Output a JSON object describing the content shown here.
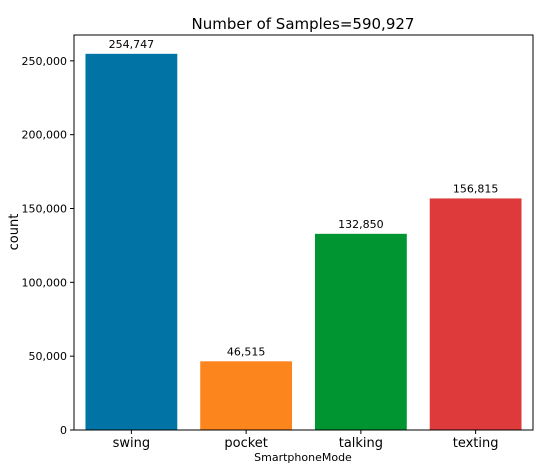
{
  "chart_data": {
    "type": "bar",
    "title": "Number of Samples=590,927",
    "xlabel": "SmartphoneMode",
    "ylabel": "count",
    "categories": [
      "swing",
      "pocket",
      "talking",
      "texting"
    ],
    "values": [
      254747,
      46515,
      132850,
      156815
    ],
    "value_labels": [
      "254,747",
      "46,515",
      "132,850",
      "156,815"
    ],
    "colors": [
      "#0173a5",
      "#fc851e",
      "#019531",
      "#de3a3b"
    ],
    "ylim": [
      0,
      267491
    ],
    "yticks": [
      0,
      50000,
      100000,
      150000,
      200000,
      250000
    ],
    "ytick_labels": [
      "0",
      "50,000",
      "100,000",
      "150,000",
      "200,000",
      "250,000"
    ],
    "grid": false,
    "legend": "none"
  }
}
